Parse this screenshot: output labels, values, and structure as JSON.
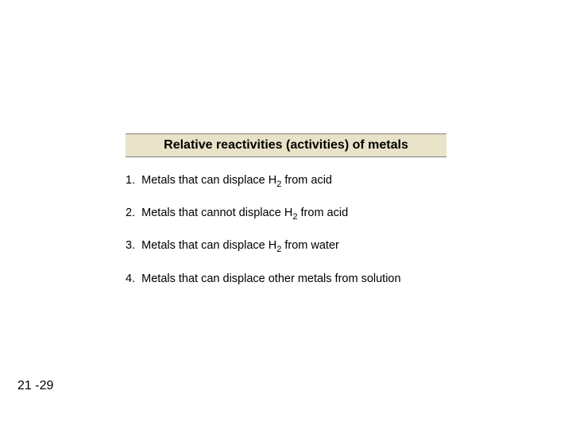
{
  "title": "Relative reactivities (activities) of metals",
  "items": [
    {
      "num": "1.",
      "text_before": "Metals that can displace H",
      "sub": "2",
      "text_after": " from acid"
    },
    {
      "num": "2.",
      "text_before": "Metals that cannot displace H",
      "sub": "2",
      "text_after": " from acid"
    },
    {
      "num": "3.",
      "text_before": "Metals that can displace H",
      "sub": "2",
      "text_after": " from water"
    },
    {
      "num": "4.",
      "text_before": "Metals that can displace other metals from solution",
      "sub": "",
      "text_after": ""
    }
  ],
  "page_number": "21 -29",
  "colors": {
    "title_bg": "#e8e3c8",
    "title_border": "#808080",
    "text": "#000000",
    "background": "#ffffff"
  },
  "fonts": {
    "title_size": 16,
    "body_size": 14.5,
    "page_size": 16
  }
}
